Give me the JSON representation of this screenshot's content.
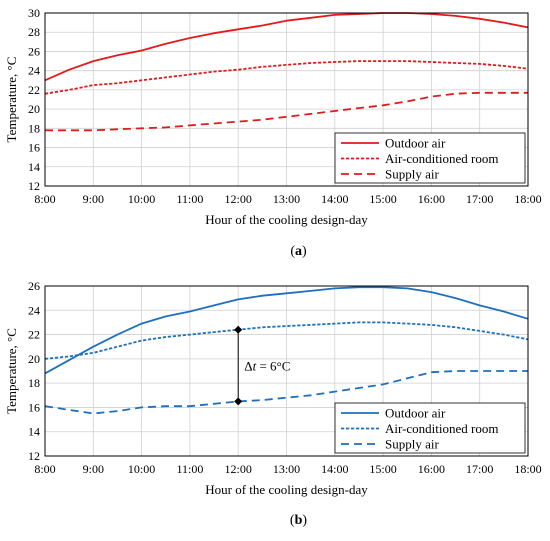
{
  "chart_data": [
    {
      "type": "line",
      "panel_label": "(a)",
      "panel_letter": "a",
      "xlabel": "Hour of the cooling design-day",
      "ylabel": "Temperature, °C",
      "x_ticks": [
        "8:00",
        "9:00",
        "10:00",
        "11:00",
        "12:00",
        "13:00",
        "14:00",
        "15:00",
        "16:00",
        "17:00",
        "18:00"
      ],
      "xlim": [
        8,
        18
      ],
      "ylim": [
        12,
        30
      ],
      "y_ticks": [
        12,
        14,
        16,
        18,
        20,
        22,
        24,
        26,
        28,
        30
      ],
      "grid": true,
      "legend_position": "bottom-right",
      "color": "#e31a1c",
      "series": [
        {
          "name": "Outdoor air",
          "style": "solid",
          "x": [
            8,
            8.5,
            9,
            9.5,
            10,
            10.5,
            11,
            11.5,
            12,
            12.5,
            13,
            13.5,
            14,
            14.5,
            15,
            15.5,
            16,
            16.5,
            17,
            17.5,
            18
          ],
          "y": [
            23.0,
            24.1,
            25.0,
            25.6,
            26.1,
            26.8,
            27.4,
            27.9,
            28.3,
            28.7,
            29.2,
            29.5,
            29.8,
            29.9,
            30.0,
            30.0,
            29.9,
            29.7,
            29.4,
            29.0,
            28.5
          ]
        },
        {
          "name": "Air-conditioned room",
          "style": "dotted",
          "x": [
            8,
            8.5,
            9,
            9.5,
            10,
            10.5,
            11,
            11.5,
            12,
            12.5,
            13,
            13.5,
            14,
            14.5,
            15,
            15.5,
            16,
            16.5,
            17,
            17.5,
            18
          ],
          "y": [
            21.6,
            22.0,
            22.5,
            22.7,
            23.0,
            23.3,
            23.6,
            23.9,
            24.1,
            24.4,
            24.6,
            24.8,
            24.9,
            25.0,
            25.0,
            25.0,
            24.9,
            24.8,
            24.7,
            24.5,
            24.2
          ]
        },
        {
          "name": "Supply air",
          "style": "dashed",
          "x": [
            8,
            8.5,
            9,
            9.5,
            10,
            10.5,
            11,
            11.5,
            12,
            12.5,
            13,
            13.5,
            14,
            14.5,
            15,
            15.5,
            16,
            16.5,
            17,
            17.5,
            18
          ],
          "y": [
            17.8,
            17.8,
            17.8,
            17.9,
            18.0,
            18.1,
            18.3,
            18.5,
            18.7,
            18.9,
            19.2,
            19.5,
            19.8,
            20.1,
            20.4,
            20.8,
            21.3,
            21.6,
            21.7,
            21.7,
            21.7
          ]
        }
      ]
    },
    {
      "type": "line",
      "panel_label": "(b)",
      "panel_letter": "b",
      "xlabel": "Hour of the cooling design-day",
      "ylabel": "Temperature, °C",
      "x_ticks": [
        "8:00",
        "9:00",
        "10:00",
        "11:00",
        "12:00",
        "13:00",
        "14:00",
        "15:00",
        "16:00",
        "17:00",
        "18:00"
      ],
      "xlim": [
        8,
        18
      ],
      "ylim": [
        12,
        26
      ],
      "y_ticks": [
        12,
        14,
        16,
        18,
        20,
        22,
        24,
        26
      ],
      "grid": true,
      "legend_position": "bottom-right",
      "color": "#1f6fc0",
      "annotation": {
        "text_prefix": "Δ",
        "text_var": "t",
        "text_suffix": " = 6°C",
        "x": 12,
        "y_top": 22.4,
        "y_bottom": 16.5
      },
      "series": [
        {
          "name": "Outdoor air",
          "style": "solid",
          "x": [
            8,
            8.5,
            9,
            9.5,
            10,
            10.5,
            11,
            11.5,
            12,
            12.5,
            13,
            13.5,
            14,
            14.5,
            15,
            15.5,
            16,
            16.5,
            17,
            17.5,
            18
          ],
          "y": [
            18.8,
            19.9,
            21.0,
            22.0,
            22.9,
            23.5,
            23.9,
            24.4,
            24.9,
            25.2,
            25.4,
            25.6,
            25.8,
            25.9,
            25.9,
            25.8,
            25.5,
            25.0,
            24.4,
            23.9,
            23.3
          ]
        },
        {
          "name": "Air-conditioned room",
          "style": "dotted",
          "x": [
            8,
            8.5,
            9,
            9.5,
            10,
            10.5,
            11,
            11.5,
            12,
            12.5,
            13,
            13.5,
            14,
            14.5,
            15,
            15.5,
            16,
            16.5,
            17,
            17.5,
            18
          ],
          "y": [
            20.0,
            20.2,
            20.5,
            21.0,
            21.5,
            21.8,
            22.0,
            22.2,
            22.4,
            22.6,
            22.7,
            22.8,
            22.9,
            23.0,
            23.0,
            22.9,
            22.8,
            22.6,
            22.3,
            22.0,
            21.6
          ]
        },
        {
          "name": "Supply air",
          "style": "dashed",
          "x": [
            8,
            8.5,
            9,
            9.5,
            10,
            10.5,
            11,
            11.5,
            12,
            12.5,
            13,
            13.5,
            14,
            14.5,
            15,
            15.5,
            16,
            16.5,
            17,
            17.5,
            18
          ],
          "y": [
            16.1,
            15.8,
            15.5,
            15.7,
            16.0,
            16.1,
            16.1,
            16.3,
            16.5,
            16.6,
            16.8,
            17.0,
            17.3,
            17.6,
            17.9,
            18.4,
            18.9,
            19.0,
            19.0,
            19.0,
            19.0
          ]
        }
      ]
    }
  ]
}
